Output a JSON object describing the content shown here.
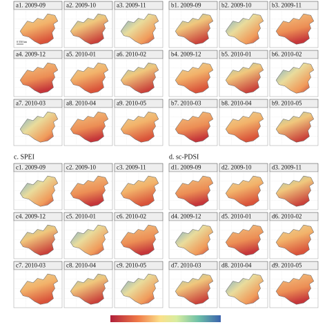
{
  "panels": [
    {
      "cells": [
        "a1. 2009-09",
        "a2. 2009-10",
        "a3. 2009-11",
        "a4. 2009-12",
        "a5. 2010-01",
        "a6. 2010-02",
        "a7. 2010-03",
        "a8. 2010-04",
        "a9. 2010-05"
      ]
    },
    {
      "cells": [
        "b1. 2009-09",
        "b2. 2009-10",
        "b3. 2009-11",
        "b4. 2009-12",
        "b5. 2010-01",
        "b6. 2010-02",
        "b7. 2010-03",
        "b8. 2010-04",
        "b9. 2010-05"
      ]
    },
    {
      "title": "c. SPEI",
      "cells": [
        "c1. 2009-09",
        "c2. 2009-10",
        "c3. 2009-11",
        "c4. 2009-12",
        "c5. 2010-01",
        "c6. 2010-02",
        "c7. 2010-03",
        "c8. 2010-04",
        "c9. 2010-05"
      ]
    },
    {
      "title": "d. sc-PDSI",
      "cells": [
        "d1. 2009-09",
        "d2. 2009-10",
        "d3. 2009-11",
        "d4. 2009-12",
        "d5. 2010-01",
        "d6. 2010-02",
        "d7. 2010-03",
        "d8. 2010-04",
        "d9. 2010-05"
      ]
    }
  ],
  "scale_bar": "0  550 km"
}
